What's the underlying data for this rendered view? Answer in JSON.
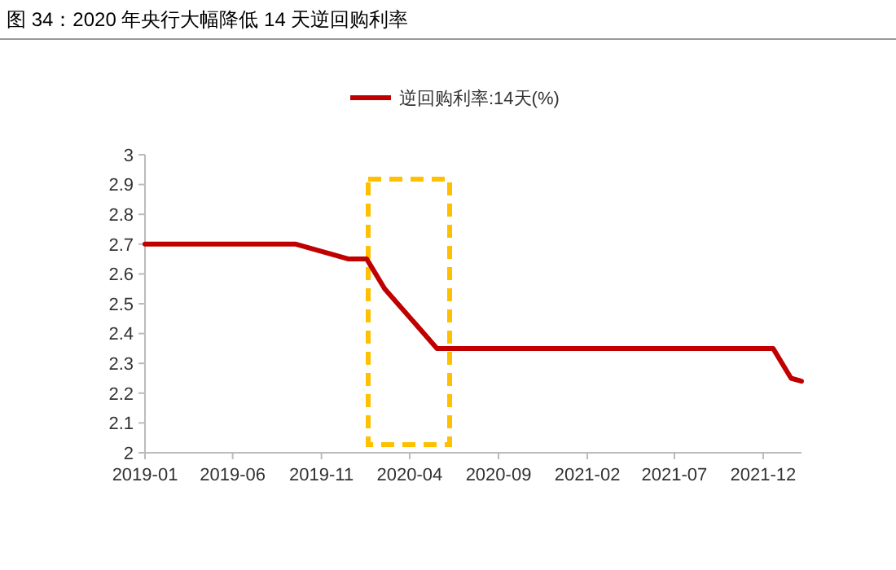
{
  "chart_data": {
    "type": "line",
    "title": "图 34：2020 年央行大幅降低 14 天逆回购利率",
    "x": [
      "2019-01-01",
      "2019-09-18",
      "2019-12-18",
      "2020-01-18",
      "2020-02-18",
      "2020-05-18",
      "2021-12-18",
      "2022-01-18",
      "2022-02-05"
    ],
    "series": [
      {
        "name": "逆回购利率:14天(%)",
        "color": "#c00000",
        "values": [
          2.7,
          2.7,
          2.65,
          2.65,
          2.55,
          2.35,
          2.35,
          2.25,
          2.24
        ]
      }
    ],
    "xlim": [
      "2019-01-01",
      "2022-02-05"
    ],
    "xticks": [
      {
        "value": "2019-01-01",
        "label": "2019-01"
      },
      {
        "value": "2019-06-01",
        "label": "2019-06"
      },
      {
        "value": "2019-11-01",
        "label": "2019-11"
      },
      {
        "value": "2020-04-01",
        "label": "2020-04"
      },
      {
        "value": "2020-09-01",
        "label": "2020-09"
      },
      {
        "value": "2021-02-01",
        "label": "2021-02"
      },
      {
        "value": "2021-07-01",
        "label": "2021-07"
      },
      {
        "value": "2021-12-01",
        "label": "2021-12"
      }
    ],
    "ylim": [
      2,
      3
    ],
    "yticks": [
      2,
      2.1,
      2.2,
      2.3,
      2.4,
      2.5,
      2.6,
      2.7,
      2.8,
      2.9,
      3
    ],
    "legend": "top",
    "grid": false,
    "marker": "none",
    "line_style": "solid"
  }
}
